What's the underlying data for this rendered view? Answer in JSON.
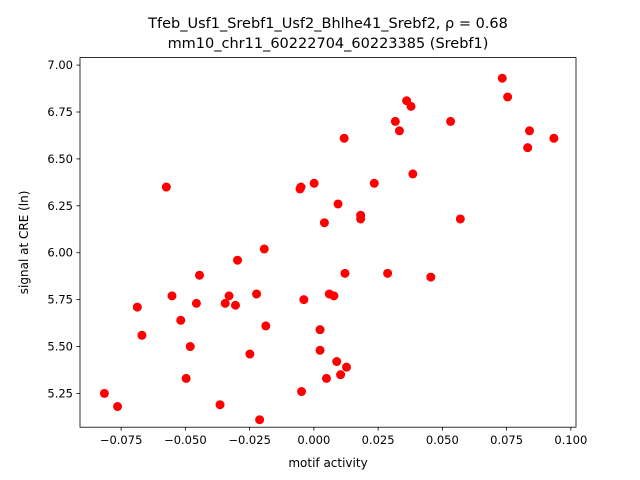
{
  "chart_data": {
    "type": "scatter",
    "title_line1": "Tfeb_Usf1_Srebf1_Usf2_Bhlhe41_Srebf2, ρ = 0.68",
    "title_line2": "mm10_chr11_60222704_60223385 (Srebf1)",
    "xlabel": "motif activity",
    "ylabel": "signal at CRE (ln)",
    "xlim": [
      -0.091,
      0.102
    ],
    "ylim": [
      5.07,
      7.04
    ],
    "xticks": [
      -0.075,
      -0.05,
      -0.025,
      0.0,
      0.025,
      0.05,
      0.075,
      0.1
    ],
    "xtick_labels": [
      "−0.075",
      "−0.050",
      "−0.025",
      "0.000",
      "0.025",
      "0.050",
      "0.075",
      "0.100"
    ],
    "yticks": [
      5.25,
      5.5,
      5.75,
      6.0,
      6.25,
      6.5,
      6.75,
      7.0
    ],
    "ytick_labels": [
      "5.25",
      "5.50",
      "5.75",
      "6.00",
      "6.25",
      "6.50",
      "6.75",
      "7.00"
    ],
    "grid": false,
    "marker_color": "#ff0000",
    "points": [
      [
        -0.0815,
        5.25
      ],
      [
        -0.0764,
        5.18
      ],
      [
        -0.0687,
        5.71
      ],
      [
        -0.0669,
        5.56
      ],
      [
        -0.0574,
        6.35
      ],
      [
        -0.0552,
        5.77
      ],
      [
        -0.0518,
        5.64
      ],
      [
        -0.0497,
        5.33
      ],
      [
        -0.0481,
        5.5
      ],
      [
        -0.0457,
        5.73
      ],
      [
        -0.0445,
        5.88
      ],
      [
        -0.0365,
        5.19
      ],
      [
        -0.0345,
        5.73
      ],
      [
        -0.033,
        5.77
      ],
      [
        -0.0305,
        5.72
      ],
      [
        -0.0297,
        5.96
      ],
      [
        -0.0249,
        5.46
      ],
      [
        -0.0223,
        5.78
      ],
      [
        -0.0211,
        5.11
      ],
      [
        -0.0193,
        6.02
      ],
      [
        -0.0187,
        5.61
      ],
      [
        -0.0054,
        6.34
      ],
      [
        -0.005,
        6.35
      ],
      [
        -0.0048,
        5.26
      ],
      [
        -0.0039,
        5.75
      ],
      [
        0.0001,
        6.37
      ],
      [
        0.0024,
        5.59
      ],
      [
        0.0024,
        5.48
      ],
      [
        0.0041,
        6.16
      ],
      [
        0.0049,
        5.33
      ],
      [
        0.006,
        5.78
      ],
      [
        0.0078,
        5.77
      ],
      [
        0.0089,
        5.42
      ],
      [
        0.0094,
        6.26
      ],
      [
        0.0104,
        5.35
      ],
      [
        0.0118,
        6.61
      ],
      [
        0.0121,
        5.89
      ],
      [
        0.0127,
        5.39
      ],
      [
        0.0182,
        6.2
      ],
      [
        0.0182,
        6.18
      ],
      [
        0.0235,
        6.37
      ],
      [
        0.0287,
        5.89
      ],
      [
        0.0317,
        6.7
      ],
      [
        0.0333,
        6.65
      ],
      [
        0.0361,
        6.81
      ],
      [
        0.0378,
        6.78
      ],
      [
        0.0385,
        6.42
      ],
      [
        0.0455,
        5.87
      ],
      [
        0.0532,
        6.7
      ],
      [
        0.057,
        6.18
      ],
      [
        0.0733,
        6.93
      ],
      [
        0.0754,
        6.83
      ],
      [
        0.0832,
        6.56
      ],
      [
        0.0839,
        6.65
      ],
      [
        0.0934,
        6.61
      ]
    ]
  }
}
